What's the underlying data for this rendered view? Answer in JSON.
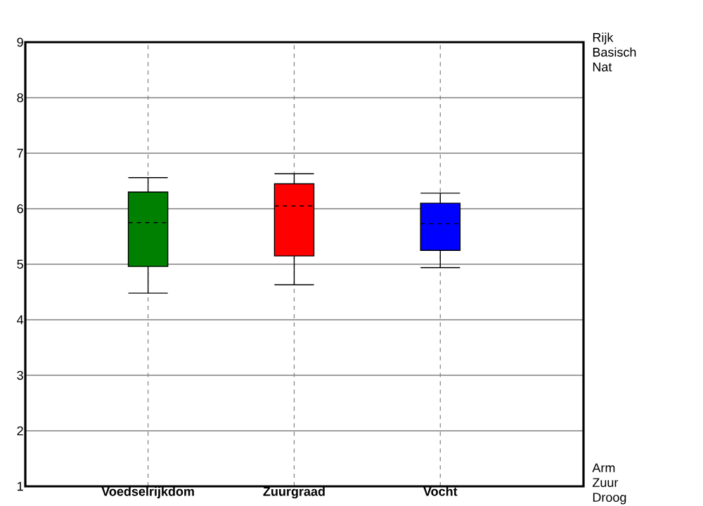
{
  "chart_data": {
    "type": "box",
    "categories": [
      "Voedselrijkdom",
      "Zuurgraad",
      "Vocht"
    ],
    "colors": [
      "#008000",
      "#ff0000",
      "#0000ff"
    ],
    "boxes": [
      {
        "low": 4.48,
        "q1": 4.96,
        "median": 5.75,
        "q3": 6.3,
        "high": 6.56
      },
      {
        "low": 4.63,
        "q1": 5.15,
        "median": 6.05,
        "q3": 6.45,
        "high": 6.63
      },
      {
        "low": 4.94,
        "q1": 5.25,
        "median": 5.73,
        "q3": 6.1,
        "high": 6.28
      }
    ],
    "ylim": [
      1,
      9
    ],
    "yticks": [
      1,
      2,
      3,
      4,
      5,
      6,
      7,
      8,
      9
    ],
    "annotations": [
      "Rijk Basisch Nat",
      "Arm Zuur Droog"
    ],
    "grid": true
  }
}
